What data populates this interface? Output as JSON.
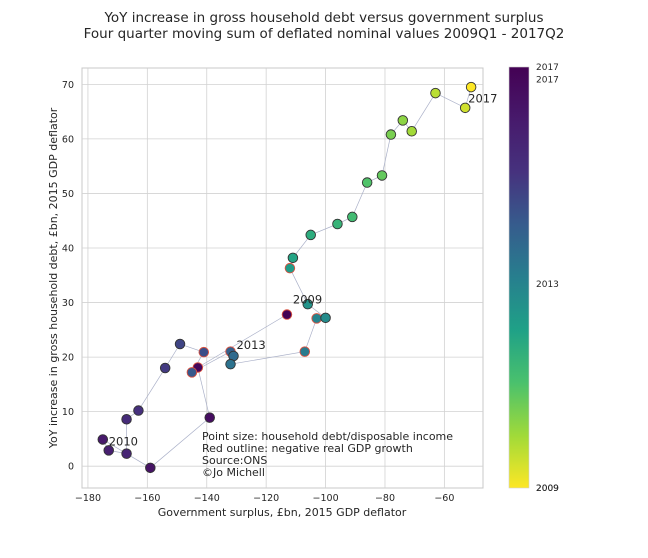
{
  "chart_data": {
    "type": "scatter",
    "title": "YoY increase in gross household debt versus government surplus",
    "subtitle": "Four quarter moving sum of deflated nominal values 2009Q1 - 2017Q2",
    "xlabel": "Government surplus, £bn, 2015 GDP deflator",
    "ylabel": "YoY increase in gross household debt, £bn, 2015 GDP deflator",
    "xlim": [
      -182,
      -47
    ],
    "ylim": [
      -4,
      73
    ],
    "xticks": [
      -180,
      -160,
      -140,
      -120,
      -100,
      -80,
      -60
    ],
    "yticks": [
      0,
      10,
      20,
      30,
      40,
      50,
      60,
      70
    ],
    "grid": true,
    "colormap": "viridis (reversed): dark purple = 2009, yellow = 2017",
    "normal_edge_color": "#333333",
    "negative_growth_edge_color": "#d9503f",
    "line_color": "#aab0c8",
    "points": [
      {
        "quarter": "2009Q1",
        "x": -113,
        "y": 27.8,
        "t": 0.0,
        "neg_growth": true
      },
      {
        "quarter": "2009Q2",
        "x": -143,
        "y": 18.1,
        "t": 0.03,
        "neg_growth": true
      },
      {
        "quarter": "2009Q3",
        "x": -139,
        "y": 8.9,
        "t": 0.061,
        "neg_growth": false
      },
      {
        "quarter": "2009Q4",
        "x": -159,
        "y": -0.3,
        "t": 0.091,
        "neg_growth": false
      },
      {
        "quarter": "2010Q1",
        "x": -175,
        "y": 4.9,
        "t": 0.121,
        "neg_growth": false
      },
      {
        "quarter": "2010Q2",
        "x": -173,
        "y": 2.9,
        "t": 0.152,
        "neg_growth": false
      },
      {
        "quarter": "2010Q3",
        "x": -167,
        "y": 2.3,
        "t": 0.182,
        "neg_growth": false
      },
      {
        "quarter": "2010Q4",
        "x": -167,
        "y": 8.6,
        "t": 0.212,
        "neg_growth": false
      },
      {
        "quarter": "2011Q1",
        "x": -163,
        "y": 10.2,
        "t": 0.242,
        "neg_growth": false
      },
      {
        "quarter": "2011Q2",
        "x": -154,
        "y": 18.0,
        "t": 0.273,
        "neg_growth": false
      },
      {
        "quarter": "2011Q3",
        "x": -149,
        "y": 22.4,
        "t": 0.303,
        "neg_growth": false
      },
      {
        "quarter": "2011Q4",
        "x": -141,
        "y": 20.9,
        "t": 0.333,
        "neg_growth": true
      },
      {
        "quarter": "2012Q1",
        "x": -145,
        "y": 17.2,
        "t": 0.364,
        "neg_growth": true
      },
      {
        "quarter": "2012Q2",
        "x": -132,
        "y": 21.0,
        "t": 0.394,
        "neg_growth": true
      },
      {
        "quarter": "2012Q3",
        "x": -131,
        "y": 20.2,
        "t": 0.424,
        "neg_growth": false
      },
      {
        "quarter": "2012Q4",
        "x": -132,
        "y": 18.7,
        "t": 0.455,
        "neg_growth": false
      },
      {
        "quarter": "2013Q1",
        "x": -107,
        "y": 21.0,
        "t": 0.485,
        "neg_growth": true
      },
      {
        "quarter": "2013Q2",
        "x": -103,
        "y": 27.1,
        "t": 0.515,
        "neg_growth": true
      },
      {
        "quarter": "2013Q3",
        "x": -100,
        "y": 27.2,
        "t": 0.545,
        "neg_growth": false
      },
      {
        "quarter": "2013Q4",
        "x": -106,
        "y": 29.7,
        "t": 0.576,
        "neg_growth": false
      },
      {
        "quarter": "2014Q1",
        "x": -112,
        "y": 36.3,
        "t": 0.606,
        "neg_growth": true
      },
      {
        "quarter": "2014Q2",
        "x": -111,
        "y": 38.2,
        "t": 0.636,
        "neg_growth": false
      },
      {
        "quarter": "2014Q3",
        "x": -105,
        "y": 42.4,
        "t": 0.667,
        "neg_growth": false
      },
      {
        "quarter": "2014Q4",
        "x": -96,
        "y": 44.4,
        "t": 0.697,
        "neg_growth": false
      },
      {
        "quarter": "2015Q1",
        "x": -91,
        "y": 45.7,
        "t": 0.727,
        "neg_growth": false
      },
      {
        "quarter": "2015Q2",
        "x": -86,
        "y": 52.0,
        "t": 0.758,
        "neg_growth": false
      },
      {
        "quarter": "2015Q3",
        "x": -81,
        "y": 53.3,
        "t": 0.788,
        "neg_growth": false
      },
      {
        "quarter": "2015Q4",
        "x": -78,
        "y": 60.8,
        "t": 0.818,
        "neg_growth": false
      },
      {
        "quarter": "2016Q1",
        "x": -74,
        "y": 63.4,
        "t": 0.848,
        "neg_growth": false
      },
      {
        "quarter": "2016Q2",
        "x": -71,
        "y": 61.4,
        "t": 0.879,
        "neg_growth": false
      },
      {
        "quarter": "2016Q3",
        "x": -63,
        "y": 68.4,
        "t": 0.909,
        "neg_growth": false
      },
      {
        "quarter": "2016Q4",
        "x": -53,
        "y": 65.7,
        "t": 0.939,
        "neg_growth": false
      },
      {
        "quarter": "2017Q1",
        "x": -51,
        "y": 69.5,
        "t": 1.0,
        "neg_growth": false
      }
    ],
    "annotations": [
      {
        "text": "2009",
        "x": -111,
        "y": 29.8
      },
      {
        "text": "2010",
        "x": -173,
        "y": 3.8
      },
      {
        "text": "2013",
        "x": -130,
        "y": 21.5
      },
      {
        "text": "2017",
        "x": -52,
        "y": 66.7
      }
    ],
    "notes": [
      "Point size: household debt/disposable income",
      "Red outline: negative real GDP growth",
      "Source:ONS",
      "©Jo Michell"
    ],
    "colorbar": {
      "labels": [
        {
          "text": "2009",
          "t": 0.0
        },
        {
          "text": "2009",
          "t": 0.0
        },
        {
          "text": "2013",
          "t": 0.485
        },
        {
          "text": "2017",
          "t": 0.97
        },
        {
          "text": "2017",
          "t": 1.0
        }
      ]
    }
  }
}
